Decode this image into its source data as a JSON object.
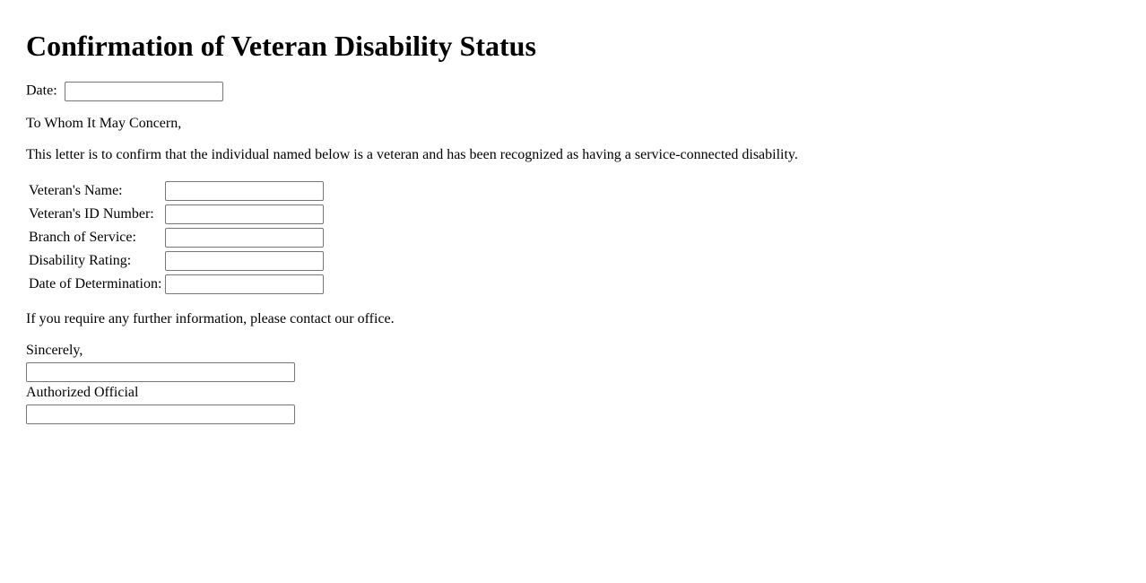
{
  "page": {
    "title": "Confirmation of Veteran Disability Status",
    "date": {
      "label": "Date:",
      "value": ""
    },
    "salutation": "To Whom It May Concern,",
    "body_text": "This letter is to confirm that the individual named below is a veteran and has been recognized as having a service-connected disability.",
    "fields": [
      {
        "label": "Veteran's Name:",
        "value": ""
      },
      {
        "label": "Veteran's ID Number:",
        "value": ""
      },
      {
        "label": "Branch of Service:",
        "value": ""
      },
      {
        "label": "Disability Rating:",
        "value": ""
      },
      {
        "label": "Date of Determination:",
        "value": ""
      }
    ],
    "closing_note": "If you require any further information, please contact our office.",
    "signature": {
      "signoff": "Sincerely,",
      "name_value": "",
      "official_label": "Authorized Official",
      "title_value": ""
    }
  }
}
